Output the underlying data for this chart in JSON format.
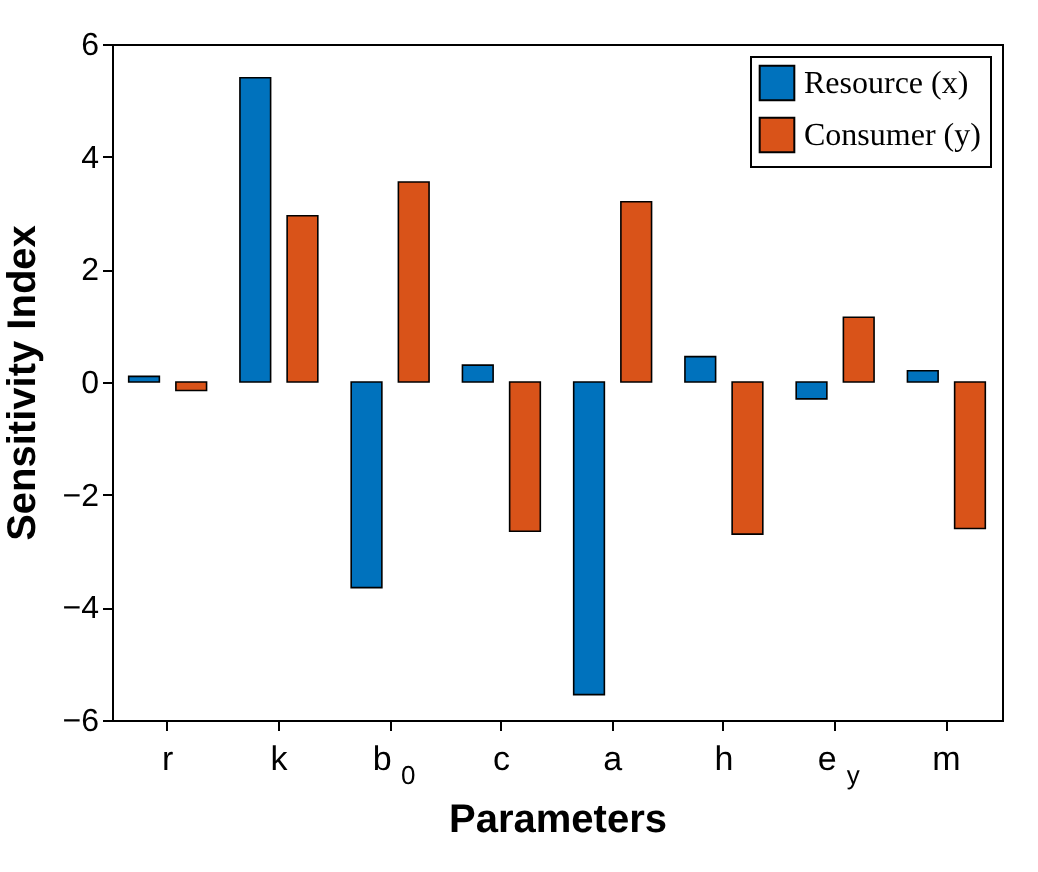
{
  "chart_data": {
    "type": "bar",
    "xlabel": "Parameters",
    "ylabel": "Sensitivity Index",
    "categories": [
      "r",
      "k",
      "b$_{0}$",
      "c",
      "a",
      "h",
      "e$_{y}$",
      "m"
    ],
    "series": [
      {
        "name": "Resource (x)",
        "color": "#0072bd",
        "values": [
          0.1,
          5.4,
          -3.65,
          0.3,
          -5.55,
          0.45,
          -0.3,
          0.2
        ]
      },
      {
        "name": "Consumer (y)",
        "color": "#d95319",
        "values": [
          -0.15,
          2.95,
          3.55,
          -2.65,
          3.2,
          -2.7,
          1.15,
          -2.6
        ]
      }
    ],
    "ylim": [
      -6,
      6
    ],
    "yticks": [
      -6,
      -4,
      -2,
      0,
      2,
      4,
      6
    ],
    "grid": false,
    "legend": "top right"
  }
}
